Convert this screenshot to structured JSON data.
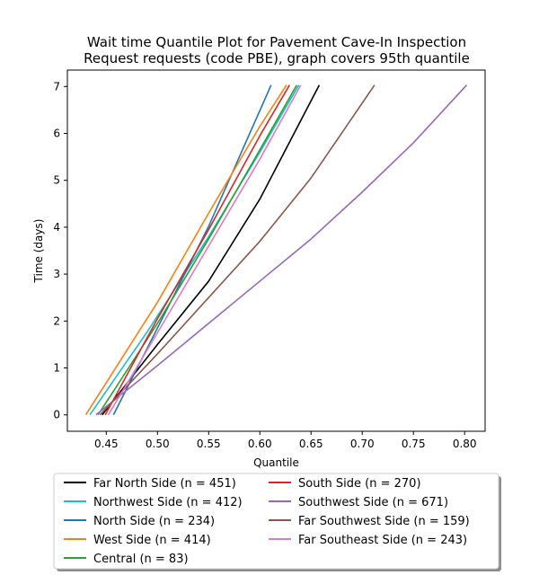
{
  "chart_data": {
    "type": "line",
    "title_lines": [
      "Wait time Quantile Plot for Pavement Cave-In Inspection",
      "Request  requests (code PBE), graph covers 95th quantile"
    ],
    "xlabel": "Quantile",
    "ylabel": "Time (days)",
    "xlim": [
      0.412,
      0.82
    ],
    "ylim": [
      -0.35,
      7.35
    ],
    "xticks": [
      0.45,
      0.5,
      0.55,
      0.6,
      0.65,
      0.7,
      0.75,
      0.8
    ],
    "xtick_labels": [
      "0.45",
      "0.50",
      "0.55",
      "0.60",
      "0.65",
      "0.70",
      "0.75",
      "0.80"
    ],
    "yticks": [
      0,
      1,
      2,
      3,
      4,
      5,
      6,
      7
    ],
    "ytick_labels": [
      "0",
      "1",
      "2",
      "3",
      "4",
      "5",
      "6",
      "7"
    ],
    "grid": false,
    "legend_placement": "below",
    "series": [
      {
        "name": "Far North Side (n = 451)",
        "color": "#000000",
        "x": [
          0.446,
          0.5,
          0.55,
          0.6,
          0.658
        ],
        "y": [
          0.0,
          1.5,
          2.85,
          4.6,
          7.03
        ]
      },
      {
        "name": "Northwest Side (n = 412)",
        "color": "#17becf",
        "x": [
          0.434,
          0.49,
          0.55,
          0.6,
          0.638
        ],
        "y": [
          0.0,
          1.77,
          3.8,
          5.6,
          7.03
        ]
      },
      {
        "name": "North Side (n = 234)",
        "color": "#1f77b4",
        "x": [
          0.457,
          0.5,
          0.55,
          0.611
        ],
        "y": [
          0.0,
          1.85,
          4.02,
          7.03
        ]
      },
      {
        "name": "West Side (n = 414)",
        "color": "#ff7f0e",
        "x": [
          0.43,
          0.5,
          0.55,
          0.6,
          0.626
        ],
        "y": [
          0.0,
          2.4,
          4.3,
          6.15,
          7.03
        ]
      },
      {
        "name": "Central (n = 83)",
        "color": "#2ca02c",
        "x": [
          0.442,
          0.5,
          0.55,
          0.6,
          0.636
        ],
        "y": [
          0.0,
          1.95,
          3.75,
          5.65,
          7.03
        ]
      },
      {
        "name": "South Side (n = 270)",
        "color": "#d62728",
        "x": [
          0.449,
          0.5,
          0.55,
          0.6,
          0.629
        ],
        "y": [
          0.0,
          2.05,
          3.95,
          5.95,
          7.03
        ]
      },
      {
        "name": "Southwest Side (n = 671)",
        "color": "#9467bd",
        "x": [
          0.44,
          0.5,
          0.55,
          0.6,
          0.65,
          0.7,
          0.75,
          0.802
        ],
        "y": [
          0.0,
          1.05,
          1.95,
          2.85,
          3.75,
          4.75,
          5.8,
          7.03
        ]
      },
      {
        "name": "Far Southwest Side (n = 159)",
        "color": "#8c564b",
        "x": [
          0.444,
          0.5,
          0.55,
          0.6,
          0.65,
          0.712
        ],
        "y": [
          0.0,
          1.3,
          2.5,
          3.7,
          5.05,
          7.03
        ]
      },
      {
        "name": "Far Southeast Side (n = 243)",
        "color": "#e377c2",
        "x": [
          0.452,
          0.5,
          0.55,
          0.6,
          0.64
        ],
        "y": [
          0.0,
          1.75,
          3.6,
          5.45,
          7.03
        ]
      }
    ]
  }
}
